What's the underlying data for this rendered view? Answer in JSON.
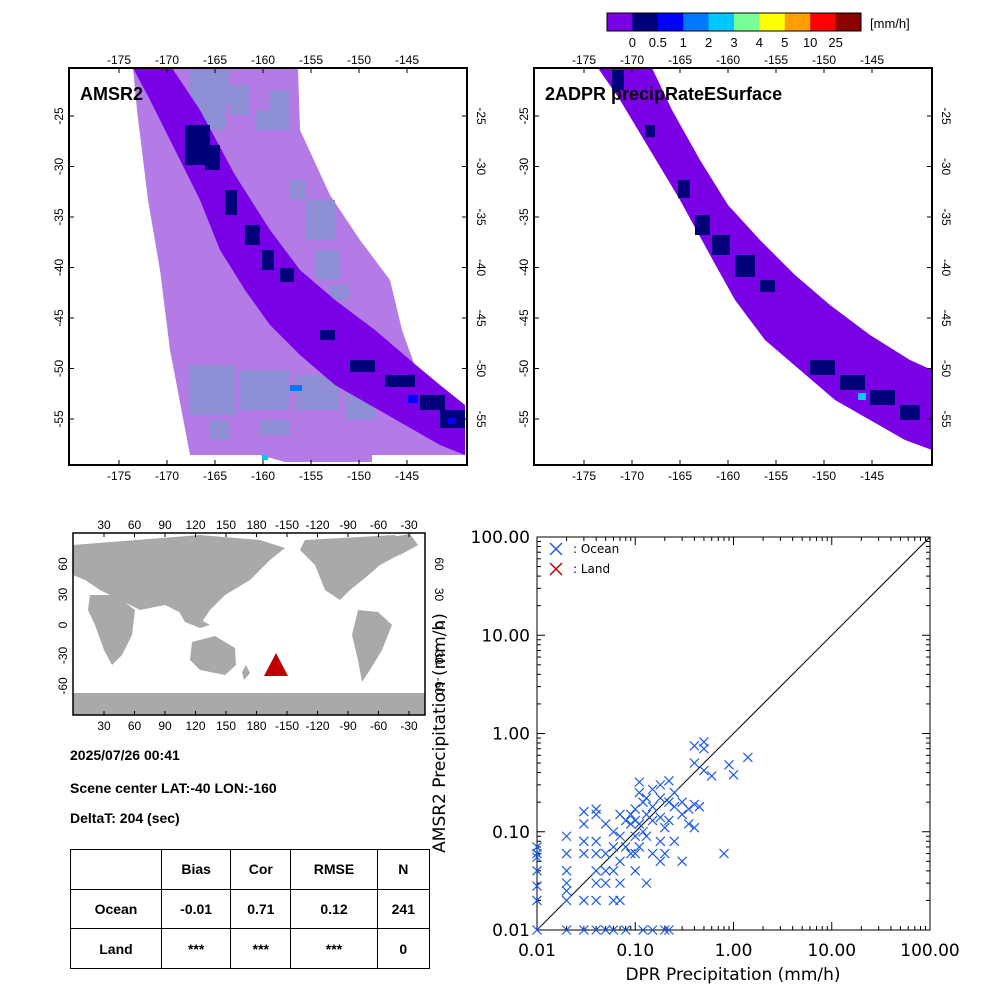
{
  "colorbar": {
    "unit": "[mm/h]",
    "labels": [
      "0",
      "0.5",
      "1",
      "2",
      "3",
      "4",
      "5",
      "10",
      "25"
    ],
    "colors": [
      "#7a00e6",
      "#00007a",
      "#0000ff",
      "#0078ff",
      "#00c8ff",
      "#78ff96",
      "#ffff00",
      "#ffa000",
      "#ff0000",
      "#8c0000"
    ]
  },
  "maps": [
    {
      "title": "AMSR2",
      "lon_ticks": [
        "-175",
        "-170",
        "-165",
        "-160",
        "-155",
        "-150",
        "-145"
      ],
      "lat_ticks": [
        "-25",
        "-30",
        "-35",
        "-40",
        "-45",
        "-50",
        "-55"
      ],
      "swath_color": "#b47be6"
    },
    {
      "title": "2ADPR precipRateESurface",
      "lon_ticks": [
        "-175",
        "-170",
        "-165",
        "-160",
        "-155",
        "-150",
        "-145"
      ],
      "lat_ticks": [
        "-25",
        "-30",
        "-35",
        "-40",
        "-45",
        "-50",
        "-55"
      ]
    }
  ],
  "world_map": {
    "top_ticks": [
      "30",
      "60",
      "90",
      "120",
      "150",
      "180",
      "-150",
      "-120",
      "-90",
      "-60",
      "-30"
    ],
    "bottom_ticks": [
      "30",
      "60",
      "90",
      "120",
      "150",
      "180",
      "-150",
      "-120",
      "-90",
      "-60",
      "-30"
    ],
    "left_ticks": [
      "60",
      "30",
      "0",
      "-30",
      "-60"
    ],
    "right_ticks": [
      "60",
      "30",
      "0",
      "-30",
      "-60"
    ],
    "land_color": "#a9a9a9",
    "marker_color": "#c00000"
  },
  "info": {
    "datetime": "2025/07/26 00:41",
    "scene_center": "Scene center LAT:-40   LON:-160",
    "delta": "DeltaT:  204 (sec)"
  },
  "stats": {
    "headers": [
      "",
      "Bias",
      "Cor",
      "RMSE",
      "N"
    ],
    "rows": [
      {
        "label": "Ocean",
        "bias": "-0.01",
        "cor": "0.71",
        "rmse": "0.12",
        "n": "241"
      },
      {
        "label": "Land",
        "bias": "***",
        "cor": "***",
        "rmse": "***",
        "n": "0"
      }
    ]
  },
  "chart_data": {
    "type": "scatter",
    "xlabel": "DPR Precipitation (mm/h)",
    "ylabel": "AMSR2 Precipitation (mm/h)",
    "scale": "log",
    "xlim": [
      0.01,
      100
    ],
    "ylim": [
      0.01,
      100
    ],
    "tick_labels": [
      "0.01",
      "0.10",
      "1.00",
      "10.00",
      "100.00"
    ],
    "tick_values": [
      0.01,
      0.1,
      1,
      10,
      100
    ],
    "legend": [
      {
        "label": ": Ocean",
        "color": "#1e5ae6"
      },
      {
        "label": ": Land",
        "color": "#c00000"
      }
    ],
    "legend_position": "top-left",
    "one_to_one_line": true,
    "series": [
      {
        "name": ": Ocean",
        "color": "#1e5ae6",
        "points": [
          [
            0.01,
            0.07
          ],
          [
            0.01,
            0.06
          ],
          [
            0.01,
            0.055
          ],
          [
            0.01,
            0.04
          ],
          [
            0.01,
            0.028
          ],
          [
            0.01,
            0.02
          ],
          [
            0.01,
            0.01
          ],
          [
            0.02,
            0.09
          ],
          [
            0.02,
            0.06
          ],
          [
            0.02,
            0.04
          ],
          [
            0.02,
            0.03
          ],
          [
            0.02,
            0.025
          ],
          [
            0.02,
            0.02
          ],
          [
            0.02,
            0.01
          ],
          [
            0.03,
            0.16
          ],
          [
            0.03,
            0.12
          ],
          [
            0.03,
            0.08
          ],
          [
            0.03,
            0.06
          ],
          [
            0.03,
            0.02
          ],
          [
            0.03,
            0.01
          ],
          [
            0.04,
            0.17
          ],
          [
            0.04,
            0.15
          ],
          [
            0.04,
            0.08
          ],
          [
            0.04,
            0.06
          ],
          [
            0.04,
            0.04
          ],
          [
            0.04,
            0.03
          ],
          [
            0.04,
            0.02
          ],
          [
            0.04,
            0.01
          ],
          [
            0.05,
            0.12
          ],
          [
            0.05,
            0.06
          ],
          [
            0.05,
            0.04
          ],
          [
            0.05,
            0.03
          ],
          [
            0.05,
            0.01
          ],
          [
            0.06,
            0.1
          ],
          [
            0.06,
            0.07
          ],
          [
            0.06,
            0.04
          ],
          [
            0.06,
            0.02
          ],
          [
            0.06,
            0.01
          ],
          [
            0.07,
            0.15
          ],
          [
            0.07,
            0.09
          ],
          [
            0.07,
            0.05
          ],
          [
            0.07,
            0.03
          ],
          [
            0.07,
            0.02
          ],
          [
            0.08,
            0.13
          ],
          [
            0.08,
            0.07
          ],
          [
            0.08,
            0.01
          ],
          [
            0.09,
            0.15
          ],
          [
            0.09,
            0.12
          ],
          [
            0.09,
            0.06
          ],
          [
            0.1,
            0.17
          ],
          [
            0.1,
            0.13
          ],
          [
            0.1,
            0.09
          ],
          [
            0.1,
            0.06
          ],
          [
            0.1,
            0.04
          ],
          [
            0.11,
            0.32
          ],
          [
            0.11,
            0.25
          ],
          [
            0.11,
            0.12
          ],
          [
            0.11,
            0.07
          ],
          [
            0.12,
            0.2
          ],
          [
            0.12,
            0.1
          ],
          [
            0.12,
            0.01
          ],
          [
            0.13,
            0.22
          ],
          [
            0.13,
            0.15
          ],
          [
            0.13,
            0.09
          ],
          [
            0.13,
            0.03
          ],
          [
            0.15,
            0.27
          ],
          [
            0.15,
            0.18
          ],
          [
            0.15,
            0.13
          ],
          [
            0.15,
            0.06
          ],
          [
            0.15,
            0.01
          ],
          [
            0.18,
            0.3
          ],
          [
            0.18,
            0.22
          ],
          [
            0.18,
            0.14
          ],
          [
            0.18,
            0.08
          ],
          [
            0.18,
            0.05
          ],
          [
            0.2,
            0.11
          ],
          [
            0.2,
            0.06
          ],
          [
            0.2,
            0.01
          ],
          [
            0.22,
            0.33
          ],
          [
            0.22,
            0.2
          ],
          [
            0.22,
            0.13
          ],
          [
            0.22,
            0.01
          ],
          [
            0.25,
            0.25
          ],
          [
            0.25,
            0.18
          ],
          [
            0.25,
            0.08
          ],
          [
            0.3,
            0.2
          ],
          [
            0.3,
            0.15
          ],
          [
            0.3,
            0.05
          ],
          [
            0.35,
            0.17
          ],
          [
            0.35,
            0.12
          ],
          [
            0.4,
            0.75
          ],
          [
            0.4,
            0.5
          ],
          [
            0.4,
            0.19
          ],
          [
            0.4,
            0.11
          ],
          [
            0.45,
            0.18
          ],
          [
            0.5,
            0.82
          ],
          [
            0.5,
            0.7
          ],
          [
            0.5,
            0.42
          ],
          [
            0.6,
            0.37
          ],
          [
            0.8,
            0.06
          ],
          [
            0.9,
            0.48
          ],
          [
            1.0,
            0.38
          ],
          [
            1.4,
            0.57
          ]
        ]
      },
      {
        "name": ": Land",
        "color": "#c00000",
        "points": []
      }
    ]
  }
}
